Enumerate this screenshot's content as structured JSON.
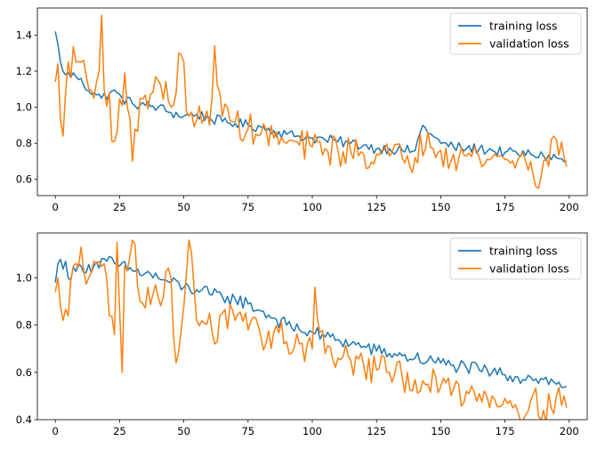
{
  "chart_data": [
    {
      "type": "line",
      "title": "",
      "xlabel": "",
      "ylabel": "",
      "xlim": [
        -7,
        207
      ],
      "ylim": [
        0.51,
        1.55
      ],
      "xticks": [
        0,
        25,
        50,
        75,
        100,
        125,
        150,
        175,
        200
      ],
      "yticks": [
        0.6,
        0.8,
        1.0,
        1.2,
        1.4
      ],
      "legend_position": "upper right",
      "grid": false,
      "x_start": 0,
      "x_step": 1,
      "series": [
        {
          "name": "training loss",
          "color": "#1f77b4",
          "anchors": [
            [
              0,
              1.42
            ],
            [
              2,
              1.25
            ],
            [
              4,
              1.18
            ],
            [
              8,
              1.17
            ],
            [
              10,
              1.16
            ],
            [
              13,
              1.09
            ],
            [
              15,
              1.08
            ],
            [
              18,
              1.05
            ],
            [
              22,
              1.09
            ],
            [
              26,
              1.05
            ],
            [
              30,
              1.02
            ],
            [
              35,
              1.01
            ],
            [
              40,
              1.0
            ],
            [
              45,
              0.97
            ],
            [
              50,
              0.95
            ],
            [
              55,
              0.96
            ],
            [
              60,
              0.94
            ],
            [
              65,
              0.92
            ],
            [
              70,
              0.91
            ],
            [
              75,
              0.9
            ],
            [
              80,
              0.89
            ],
            [
              85,
              0.87
            ],
            [
              90,
              0.85
            ],
            [
              95,
              0.84
            ],
            [
              100,
              0.83
            ],
            [
              105,
              0.82
            ],
            [
              110,
              0.81
            ],
            [
              115,
              0.8
            ],
            [
              120,
              0.79
            ],
            [
              125,
              0.77
            ],
            [
              130,
              0.77
            ],
            [
              135,
              0.76
            ],
            [
              140,
              0.76
            ],
            [
              143,
              0.9
            ],
            [
              147,
              0.84
            ],
            [
              150,
              0.8
            ],
            [
              155,
              0.78
            ],
            [
              160,
              0.77
            ],
            [
              165,
              0.77
            ],
            [
              170,
              0.76
            ],
            [
              175,
              0.75
            ],
            [
              180,
              0.74
            ],
            [
              185,
              0.74
            ],
            [
              190,
              0.73
            ],
            [
              195,
              0.72
            ],
            [
              199,
              0.7
            ]
          ],
          "noise": 0.03
        },
        {
          "name": "validation loss",
          "color": "#ff7f0e",
          "anchors": [
            [
              0,
              1.14
            ],
            [
              1,
              1.24
            ],
            [
              2,
              0.93
            ],
            [
              3,
              0.84
            ],
            [
              5,
              1.25
            ],
            [
              8,
              1.25
            ],
            [
              11,
              1.26
            ],
            [
              13,
              1.1
            ],
            [
              15,
              1.05
            ],
            [
              17,
              1.2
            ],
            [
              18,
              1.51
            ],
            [
              19,
              1.1
            ],
            [
              21,
              1.08
            ],
            [
              22,
              0.81
            ],
            [
              23,
              0.81
            ],
            [
              27,
              1.19
            ],
            [
              30,
              0.7
            ],
            [
              33,
              1.05
            ],
            [
              37,
              1.07
            ],
            [
              40,
              1.15
            ],
            [
              45,
              1.0
            ],
            [
              49,
              1.29
            ],
            [
              52,
              0.95
            ],
            [
              55,
              0.93
            ],
            [
              60,
              0.9
            ],
            [
              62,
              1.34
            ],
            [
              65,
              0.95
            ],
            [
              70,
              0.92
            ],
            [
              75,
              0.88
            ],
            [
              80,
              0.85
            ],
            [
              85,
              0.83
            ],
            [
              90,
              0.8
            ],
            [
              95,
              0.79
            ],
            [
              100,
              0.78
            ],
            [
              105,
              0.77
            ],
            [
              110,
              0.76
            ],
            [
              115,
              0.75
            ],
            [
              120,
              0.74
            ],
            [
              125,
              0.74
            ],
            [
              130,
              0.73
            ],
            [
              135,
              0.72
            ],
            [
              140,
              0.72
            ],
            [
              145,
              0.86
            ],
            [
              150,
              0.76
            ],
            [
              155,
              0.74
            ],
            [
              160,
              0.73
            ],
            [
              165,
              0.72
            ],
            [
              170,
              0.72
            ],
            [
              175,
              0.71
            ],
            [
              180,
              0.71
            ],
            [
              185,
              0.7
            ],
            [
              187,
              0.56
            ],
            [
              190,
              0.7
            ],
            [
              195,
              0.82
            ],
            [
              199,
              0.67
            ]
          ],
          "noise": 0.09
        }
      ]
    },
    {
      "type": "line",
      "title": "",
      "xlabel": "",
      "ylabel": "",
      "xlim": [
        -7,
        207
      ],
      "ylim": [
        0.4,
        1.19
      ],
      "xticks": [
        0,
        25,
        50,
        75,
        100,
        125,
        150,
        175,
        200
      ],
      "yticks": [
        0.4,
        0.6,
        0.8,
        1.0
      ],
      "legend_position": "upper right",
      "grid": false,
      "x_start": 0,
      "x_step": 1,
      "series": [
        {
          "name": "training loss",
          "color": "#1f77b4",
          "anchors": [
            [
              0,
              0.98
            ],
            [
              1,
              1.06
            ],
            [
              4,
              1.07
            ],
            [
              5,
              1.0
            ],
            [
              10,
              1.05
            ],
            [
              15,
              1.05
            ],
            [
              20,
              1.07
            ],
            [
              25,
              1.05
            ],
            [
              30,
              1.03
            ],
            [
              35,
              1.02
            ],
            [
              40,
              1.0
            ],
            [
              45,
              0.98
            ],
            [
              50,
              0.96
            ],
            [
              55,
              0.95
            ],
            [
              60,
              0.93
            ],
            [
              65,
              0.92
            ],
            [
              70,
              0.91
            ],
            [
              75,
              0.89
            ],
            [
              80,
              0.86
            ],
            [
              85,
              0.83
            ],
            [
              90,
              0.8
            ],
            [
              95,
              0.78
            ],
            [
              100,
              0.77
            ],
            [
              105,
              0.75
            ],
            [
              110,
              0.74
            ],
            [
              115,
              0.72
            ],
            [
              120,
              0.71
            ],
            [
              125,
              0.69
            ],
            [
              130,
              0.68
            ],
            [
              135,
              0.67
            ],
            [
              140,
              0.66
            ],
            [
              145,
              0.65
            ],
            [
              150,
              0.64
            ],
            [
              155,
              0.63
            ],
            [
              160,
              0.62
            ],
            [
              165,
              0.61
            ],
            [
              170,
              0.6
            ],
            [
              175,
              0.59
            ],
            [
              180,
              0.58
            ],
            [
              185,
              0.58
            ],
            [
              190,
              0.57
            ],
            [
              195,
              0.55
            ],
            [
              199,
              0.54
            ]
          ],
          "noise": 0.03
        },
        {
          "name": "validation loss",
          "color": "#ff7f0e",
          "anchors": [
            [
              0,
              0.94
            ],
            [
              1,
              1.0
            ],
            [
              2,
              0.88
            ],
            [
              3,
              0.82
            ],
            [
              5,
              0.84
            ],
            [
              7,
              1.05
            ],
            [
              10,
              1.13
            ],
            [
              13,
              1.0
            ],
            [
              15,
              1.07
            ],
            [
              17,
              1.07
            ],
            [
              19,
              1.06
            ],
            [
              21,
              0.84
            ],
            [
              23,
              0.76
            ],
            [
              24,
              1.15
            ],
            [
              26,
              0.6
            ],
            [
              27,
              1.05
            ],
            [
              30,
              1.16
            ],
            [
              33,
              0.9
            ],
            [
              36,
              0.96
            ],
            [
              40,
              0.92
            ],
            [
              45,
              1.0
            ],
            [
              47,
              0.64
            ],
            [
              50,
              0.88
            ],
            [
              52,
              1.16
            ],
            [
              55,
              0.82
            ],
            [
              60,
              0.85
            ],
            [
              62,
              0.72
            ],
            [
              65,
              0.85
            ],
            [
              70,
              0.82
            ],
            [
              75,
              0.78
            ],
            [
              80,
              0.75
            ],
            [
              85,
              0.77
            ],
            [
              90,
              0.73
            ],
            [
              95,
              0.72
            ],
            [
              100,
              0.7
            ],
            [
              101,
              0.96
            ],
            [
              105,
              0.68
            ],
            [
              110,
              0.66
            ],
            [
              115,
              0.65
            ],
            [
              120,
              0.63
            ],
            [
              125,
              0.61
            ],
            [
              130,
              0.6
            ],
            [
              135,
              0.58
            ],
            [
              140,
              0.57
            ],
            [
              145,
              0.55
            ],
            [
              150,
              0.54
            ],
            [
              155,
              0.53
            ],
            [
              160,
              0.52
            ],
            [
              165,
              0.51
            ],
            [
              170,
              0.5
            ],
            [
              175,
              0.49
            ],
            [
              178,
              0.45
            ],
            [
              185,
              0.48
            ],
            [
              190,
              0.44
            ],
            [
              195,
              0.5
            ],
            [
              199,
              0.45
            ]
          ],
          "noise": 0.07
        }
      ]
    }
  ]
}
